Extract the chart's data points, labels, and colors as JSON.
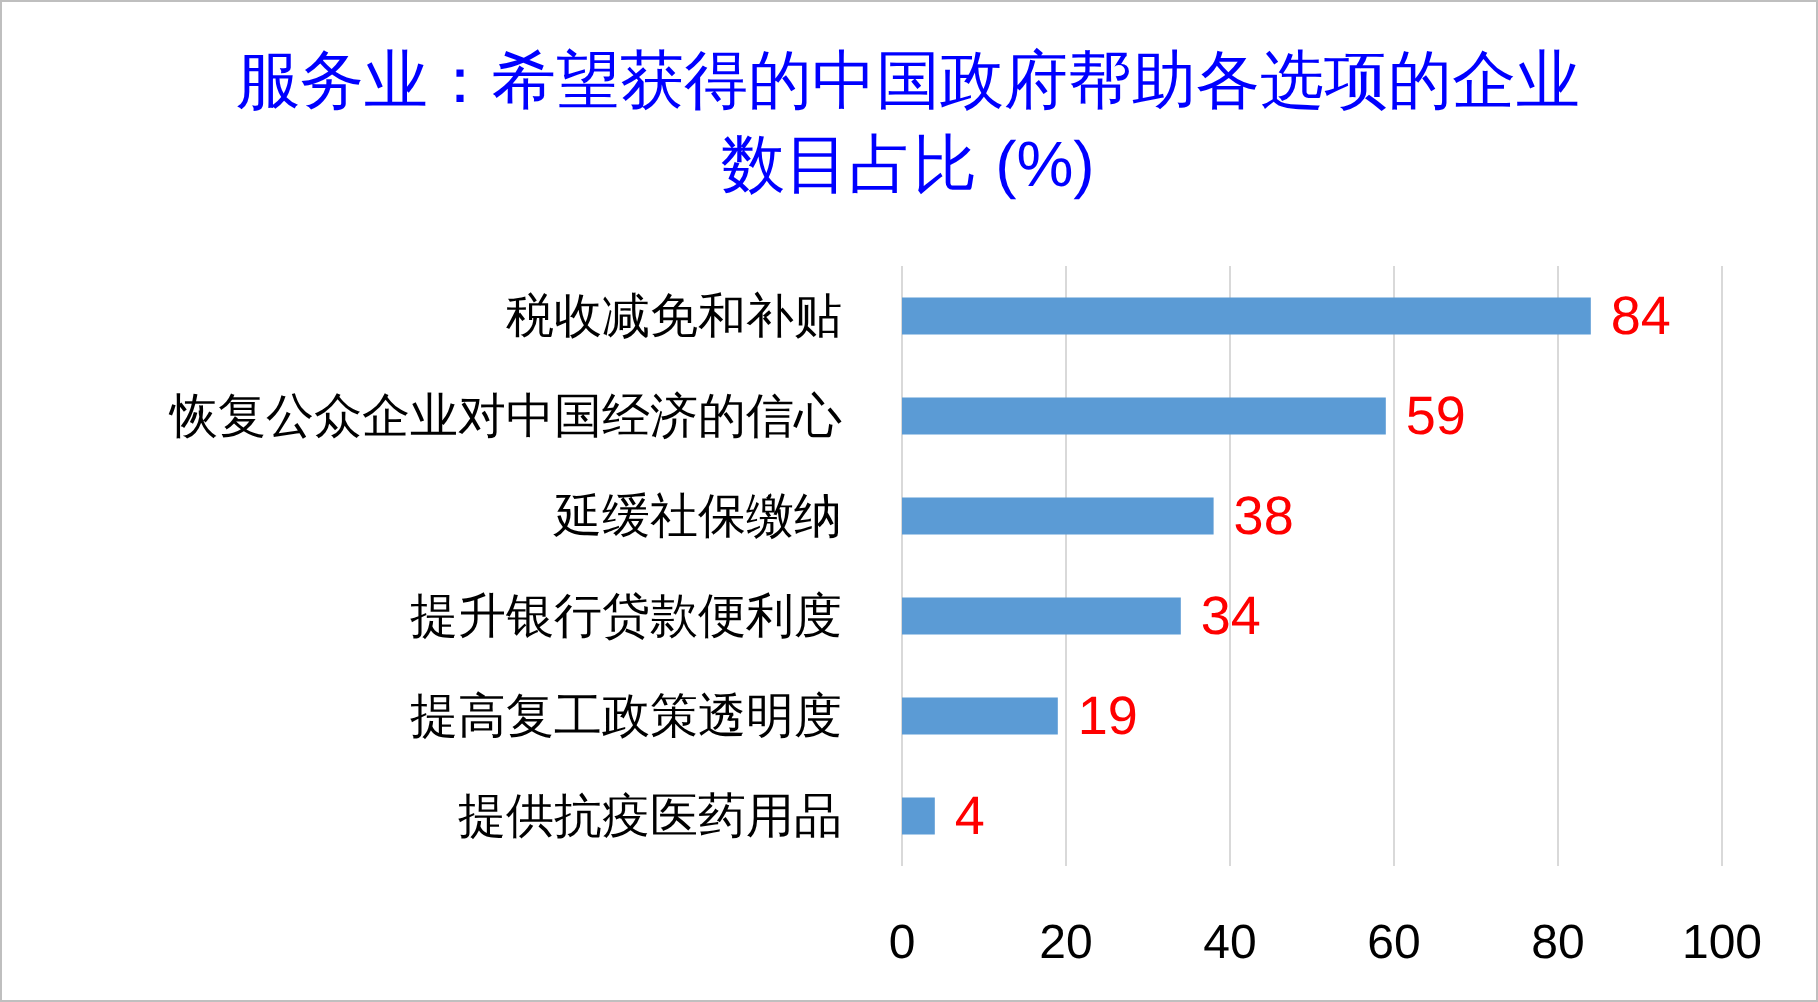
{
  "chart_data": {
    "type": "bar",
    "orientation": "horizontal",
    "title": "服务业：希望获得的中国政府帮助各选项的企业数目占比 (%)",
    "categories": [
      "税收减免和补贴",
      "恢复公众企业对中国经济的信心",
      "延缓社保缴纳",
      "提升银行贷款便利度",
      "提高复工政策透明度",
      "提供抗疫医药用品"
    ],
    "values": [
      84,
      59,
      38,
      34,
      19,
      4
    ],
    "color": "#5b9bd5",
    "xlim": [
      0,
      100
    ],
    "xticks": [
      0,
      20,
      40,
      60,
      80,
      100
    ],
    "grid": "x",
    "data_labels": true
  }
}
